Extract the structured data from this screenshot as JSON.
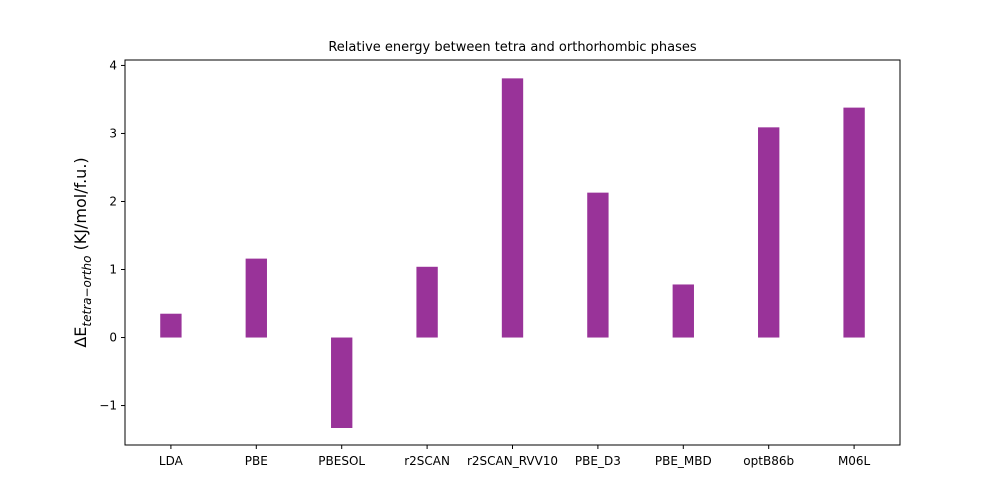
{
  "chart_data": {
    "type": "bar",
    "title": "Relative energy between tetra and orthorhombic phases",
    "xlabel": "",
    "ylabel": {
      "prefix": "ΔE",
      "subscript": "tetra−ortho",
      "suffix": " (KJ/mol/f.u.)"
    },
    "categories": [
      "LDA",
      "PBE",
      "PBESOL",
      "r2SCAN",
      "r2SCAN_RVV10",
      "PBE_D3",
      "PBE_MBD",
      "optB86b",
      "M06L"
    ],
    "values": [
      0.35,
      1.16,
      -1.33,
      1.04,
      3.81,
      2.13,
      0.78,
      3.09,
      3.38
    ],
    "ylim": [
      -1.58,
      4.08
    ],
    "yticks": [
      -1,
      0,
      1,
      2,
      3,
      4
    ],
    "ytick_labels": [
      "−1",
      "0",
      "1",
      "2",
      "3",
      "4"
    ],
    "bar_color": "#993399",
    "grid": false,
    "legend": "none"
  }
}
